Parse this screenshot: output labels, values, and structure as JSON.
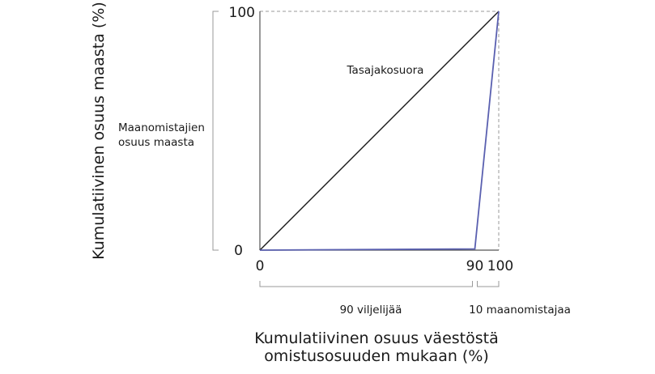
{
  "chart_data": {
    "type": "line",
    "xlabel_lines": [
      "Kumulatiivinen osuus väestöstä",
      "omistusosuuden mukaan (%)"
    ],
    "ylabel": "Kumulatiivinen osuus maasta (%)",
    "xlim": [
      0,
      100
    ],
    "ylim": [
      0,
      100
    ],
    "x_ticks": [
      "0",
      "90",
      "100"
    ],
    "y_ticks": [
      "0",
      "100"
    ],
    "grid": false,
    "colors": {
      "equality": "#1a1a1a",
      "lorenz": "#5a60b0",
      "axis": "#555555",
      "guide": "#999999"
    },
    "series": [
      {
        "key": "equality",
        "x": [
          0,
          100
        ],
        "y": [
          0,
          100
        ]
      },
      {
        "key": "lorenz",
        "x": [
          0,
          90,
          100
        ],
        "y": [
          0,
          0.5,
          100
        ]
      }
    ],
    "annotations": {
      "equality_label": "Tasajakosuora",
      "landowner_share_lines": [
        "Maanomistajien",
        "osuus maasta"
      ],
      "farmers_label": "90 viljelijää",
      "landowners_label": "10 maanomistajaa"
    }
  }
}
